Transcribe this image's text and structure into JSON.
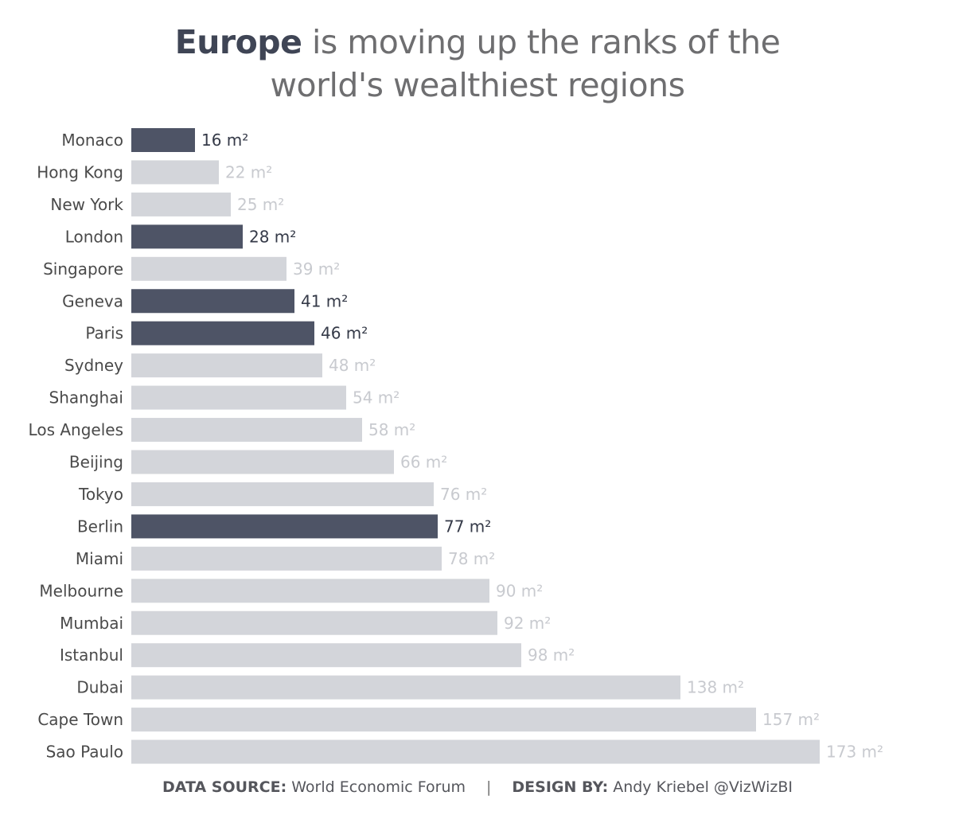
{
  "title": {
    "highlight": "Europe",
    "line1_rest": " is moving up the ranks of the",
    "line2": "world's wealthiest regions"
  },
  "footer": {
    "source_label": "DATA SOURCE:",
    "source_value": " World Economic Forum",
    "separator": "|",
    "design_label": "DESIGN BY:",
    "design_value": " Andy Kriebel @VizWizBI"
  },
  "colors": {
    "europe": "#4e5466",
    "other": "#d3d5da",
    "europe_label": "#353a48",
    "other_label": "#c8cacf",
    "category_label": "#4a4a4a"
  },
  "chart_data": {
    "type": "bar",
    "orientation": "horizontal",
    "categories": [
      "Monaco",
      "Hong Kong",
      "New York",
      "London",
      "Singapore",
      "Geneva",
      "Paris",
      "Sydney",
      "Shanghai",
      "Los Angeles",
      "Beijing",
      "Tokyo",
      "Berlin",
      "Miami",
      "Melbourne",
      "Mumbai",
      "Istanbul",
      "Dubai",
      "Cape Town",
      "Sao Paulo"
    ],
    "values": [
      16,
      22,
      25,
      28,
      39,
      41,
      46,
      48,
      54,
      58,
      66,
      76,
      77,
      78,
      90,
      92,
      98,
      138,
      157,
      173
    ],
    "value_labels": [
      "16 m²",
      "22 m²",
      "25 m²",
      "28 m²",
      "39 m²",
      "41 m²",
      "46 m²",
      "48 m²",
      "54 m²",
      "58 m²",
      "66 m²",
      "76 m²",
      "77 m²",
      "78 m²",
      "90 m²",
      "92 m²",
      "98 m²",
      "138 m²",
      "157 m²",
      "173 m²"
    ],
    "europe": [
      true,
      false,
      false,
      true,
      false,
      true,
      true,
      false,
      false,
      false,
      false,
      false,
      true,
      false,
      false,
      false,
      false,
      false,
      false,
      false
    ],
    "xlim": [
      0,
      173
    ],
    "grid": false,
    "legend": "none"
  }
}
